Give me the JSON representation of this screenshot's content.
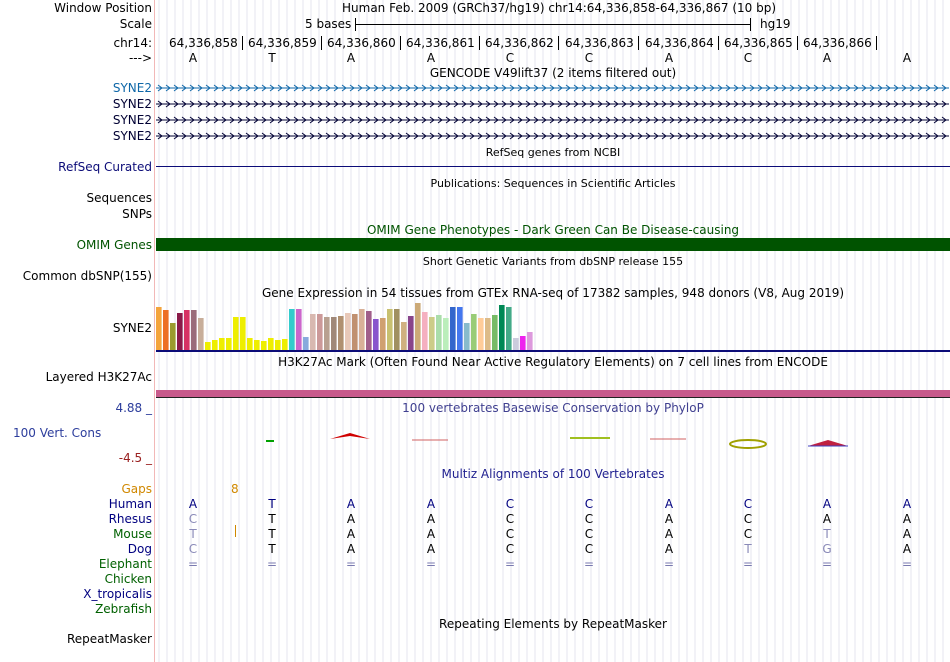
{
  "header": {
    "window_position_label": "Window Position",
    "scale_label": "Scale",
    "chrom_label": "chr14:",
    "strand_label": "--->",
    "assembly_title": "Human Feb. 2009 (GRCh37/hg19)   chr14:64,336,858-64,336,867 (10 bp)",
    "scale_text": "5 bases",
    "assembly_short": "hg19",
    "positions": [
      "64,336,858",
      "64,336,859",
      "64,336,860",
      "64,336,861",
      "64,336,862",
      "64,336,863",
      "64,336,864",
      "64,336,865",
      "64,336,866"
    ],
    "bases": [
      "A",
      "T",
      "A",
      "A",
      "C",
      "C",
      "A",
      "C",
      "A",
      "A"
    ]
  },
  "gencode": {
    "title": "GENCODE V49lift37 (2 items filtered out)",
    "genes": [
      "SYNE2",
      "SYNE2",
      "SYNE2",
      "SYNE2"
    ],
    "colors": [
      "#0e67a8",
      "#000033",
      "#000033",
      "#000033"
    ]
  },
  "refseq": {
    "label": "RefSeq Curated",
    "title": "RefSeq genes from NCBI"
  },
  "sequences": {
    "label": "Sequences",
    "title": "Publications: Sequences in Scientific Articles"
  },
  "snps_label": "SNPs",
  "omim": {
    "label": "OMIM Genes",
    "title": "OMIM Gene Phenotypes - Dark Green Can Be Disease-causing",
    "color": "#005300"
  },
  "dbsnp": {
    "label": "Common dbSNP(155)",
    "title": "Short Genetic Variants from dbSNP release 155"
  },
  "gtex": {
    "label": "SYNE2",
    "title": "Gene Expression in 54 tissues from GTEx RNA-seq of 17382 samples, 948 donors (V8, Aug 2019)",
    "max_value": 50,
    "values": [
      43,
      40,
      27,
      37,
      40,
      40,
      32,
      8,
      10,
      12,
      12,
      33,
      33,
      12,
      10,
      9,
      12,
      10,
      11,
      41,
      41,
      13,
      36,
      36,
      33,
      33,
      34,
      37,
      36,
      41,
      39,
      31,
      32,
      41,
      41,
      28,
      34,
      47,
      38,
      33,
      35,
      32,
      43,
      43,
      27,
      36,
      32,
      32,
      35,
      45,
      43,
      12,
      14,
      18
    ],
    "colors": [
      "#f4a43c",
      "#ed6e24",
      "#9b9b2e",
      "#8a1a48",
      "#d63264",
      "#9a6b7a",
      "#c8ae9a",
      "#eeee00",
      "#eeee00",
      "#eeee00",
      "#eeee00",
      "#eeee00",
      "#eeee00",
      "#eeee00",
      "#eeee00",
      "#eeee00",
      "#eeee00",
      "#eeee00",
      "#eeee00",
      "#33cccc",
      "#cc66cc",
      "#88aadd",
      "#d8b8b0",
      "#cc9999",
      "#b8a090",
      "#a08878",
      "#b09070",
      "#e8c8b8",
      "#c09070",
      "#d8b098",
      "#a05e8a",
      "#8855cc",
      "#d0a070",
      "#c8c070",
      "#a09060",
      "#d0b080",
      "#88448a",
      "#ccaa77",
      "#f5b0c0",
      "#cccc88",
      "#aaddaa",
      "#bbeebb",
      "#3366cc",
      "#4477ee",
      "#88bbcc",
      "#99cc77",
      "#ffcc99",
      "#ddbb88",
      "#77bb66",
      "#008855",
      "#44aa88",
      "#ccccdd",
      "#ee22ee",
      "#dd99dd"
    ]
  },
  "h3k27ac": {
    "label": "Layered H3K27Ac",
    "title": "H3K27Ac Mark (Often Found Near Active Regulatory Elements) on 7 cell lines from ENCODE",
    "color": "#c85a8c"
  },
  "phylop": {
    "max_label": "4.88 _",
    "min_label": "-4.5 _",
    "label": "100 Vert. Cons",
    "title": "100 vertebrates Basewise Conservation by PhyloP",
    "title_color": "#404090"
  },
  "multiz": {
    "title": "Multiz Alignments of 100 Vertebrates",
    "title_color": "#1f1f8f",
    "gaps_label": "Gaps",
    "gaps_value": "8",
    "gaps_color": "#d08800",
    "species": [
      {
        "name": "Human",
        "color": "#000080",
        "bases": [
          "A",
          "T",
          "A",
          "A",
          "C",
          "C",
          "A",
          "C",
          "A",
          "A"
        ]
      },
      {
        "name": "Rhesus",
        "color": "#000080",
        "bases": [
          "C",
          "T",
          "A",
          "A",
          "C",
          "C",
          "A",
          "C",
          "A",
          "A"
        ]
      },
      {
        "name": "Mouse",
        "color": "#006000",
        "bases": [
          "T",
          "T",
          "A",
          "A",
          "C",
          "C",
          "A",
          "C",
          "T",
          "A"
        ]
      },
      {
        "name": "Dog",
        "color": "#000080",
        "bases": [
          "C",
          "T",
          "A",
          "A",
          "C",
          "C",
          "A",
          "T",
          "G",
          "A"
        ]
      },
      {
        "name": "Elephant",
        "color": "#006000",
        "bases": [
          "=",
          "=",
          "=",
          "=",
          "=",
          "=",
          "=",
          "=",
          "=",
          "="
        ]
      },
      {
        "name": "Chicken",
        "color": "#006000",
        "bases": []
      },
      {
        "name": "X_tropicalis",
        "color": "#000080",
        "bases": []
      },
      {
        "name": "Zebrafish",
        "color": "#006000",
        "bases": []
      }
    ]
  },
  "repeatmasker": {
    "label": "RepeatMasker",
    "title": "Repeating Elements by RepeatMasker"
  }
}
